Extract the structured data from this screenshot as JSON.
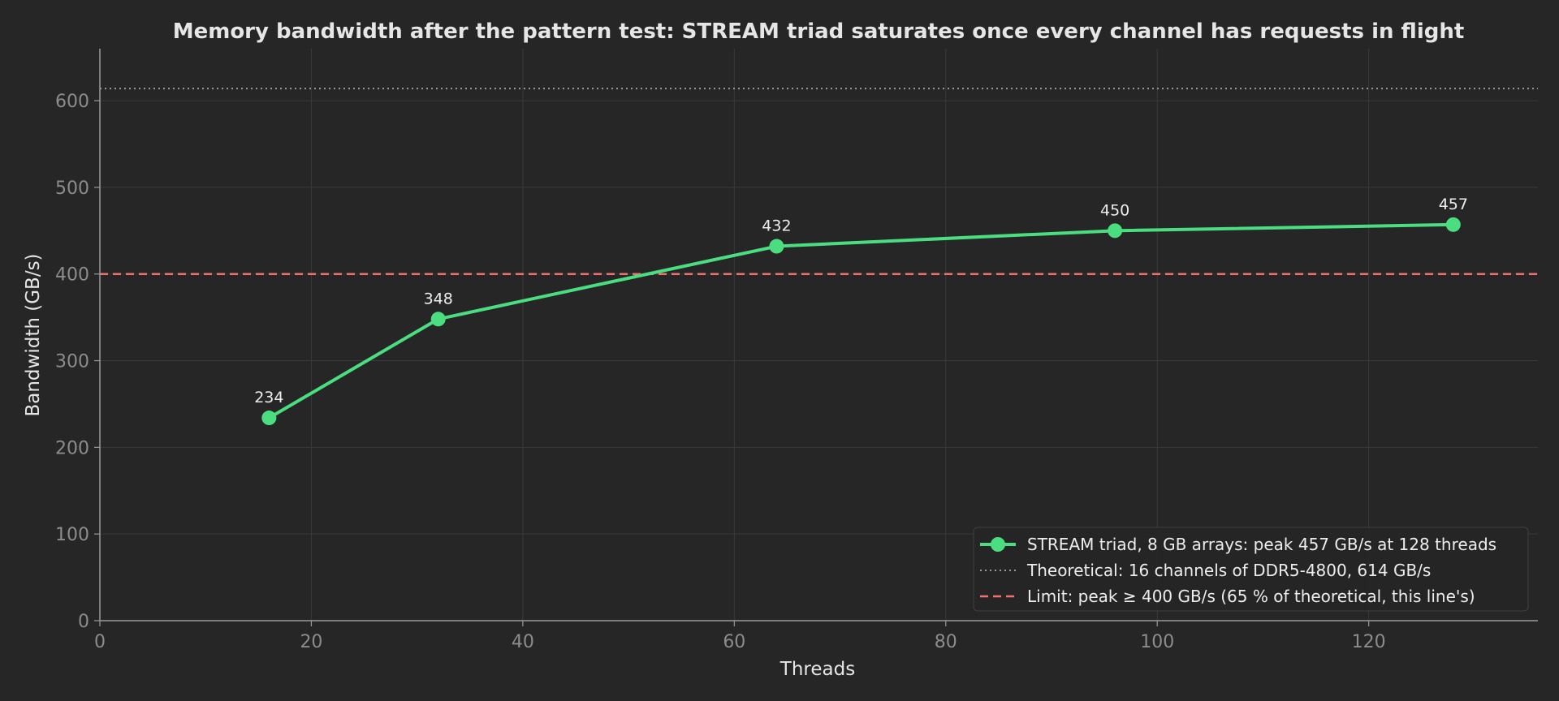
{
  "chart_data": {
    "type": "line",
    "title": "Memory bandwidth after the pattern test: STREAM triad saturates once every channel has requests in flight",
    "xlabel": "Threads",
    "ylabel": "Bandwidth (GB/s)",
    "xlim": [
      0,
      136
    ],
    "ylim": [
      0,
      660
    ],
    "x_ticks": [
      0,
      20,
      40,
      60,
      80,
      100,
      120
    ],
    "y_ticks": [
      0,
      100,
      200,
      300,
      400,
      500,
      600
    ],
    "grid": true,
    "legend_position": "lower-right",
    "series": [
      {
        "name": "STREAM triad, 8 GB arrays: peak 457 GB/s at 128 threads",
        "x": [
          16,
          32,
          64,
          96,
          128
        ],
        "y": [
          234,
          348,
          432,
          450,
          457
        ],
        "data_labels": [
          "234",
          "348",
          "432",
          "450",
          "457"
        ],
        "color": "#4ade80",
        "marker": "circle"
      }
    ],
    "reference_lines": [
      {
        "name": "Theoretical: 16 channels of DDR5-4800, 614 GB/s",
        "y": 614,
        "style": "dotted",
        "color": "#9a9a9a"
      },
      {
        "name": "Limit: peak ≥ 400 GB/s (65 % of theoretical, this line's)",
        "y": 400,
        "style": "dashed",
        "color": "#f07171"
      }
    ]
  },
  "colors": {
    "background": "#262626",
    "grid": "#3a3a3a",
    "axis": "#9a9a9a",
    "legend_bg": "#262626",
    "legend_border": "#404040"
  }
}
